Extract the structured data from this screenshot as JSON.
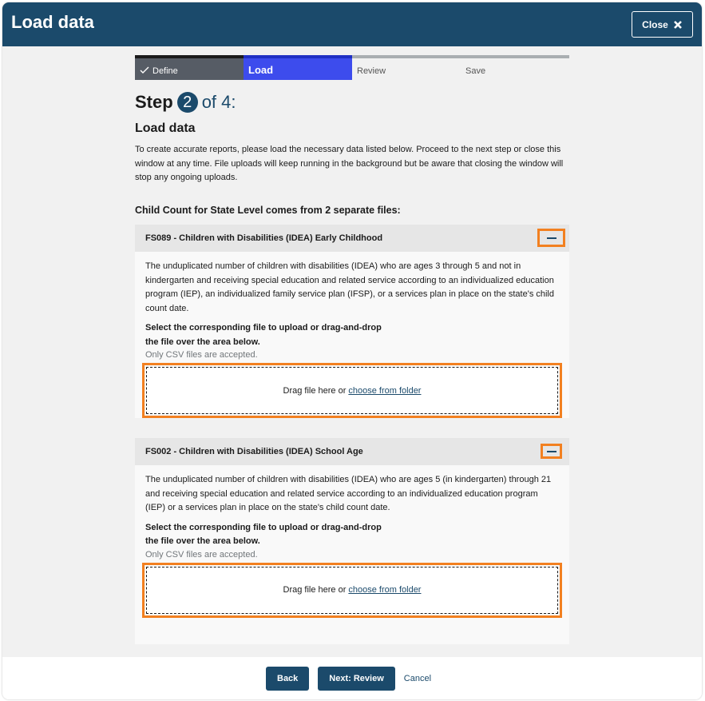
{
  "header": {
    "title": "Load data",
    "close_label": "Close"
  },
  "steps": [
    {
      "label": "Define",
      "state": "done"
    },
    {
      "label": "Load",
      "state": "current"
    },
    {
      "label": "Review",
      "state": "todo"
    },
    {
      "label": "Save",
      "state": "todo"
    }
  ],
  "step": {
    "prefix": "Step",
    "current": "2",
    "suffix": "of 4:"
  },
  "section_title": "Load data",
  "intro": "To create accurate reports, please load the necessary data listed below. Proceed to the next step or close this window at any time. File uploads will keep running in the background but be aware that closing the window will stop any ongoing uploads.",
  "files_heading": "Child Count for State Level comes from 2 separate files:",
  "files": [
    {
      "title": "FS089 - Children with Disabilities (IDEA) Early Childhood",
      "description": "The unduplicated number of children with disabilities (IDEA) who are ages 3 through 5 and not in kindergarten and receiving special education and related service according to an individualized education program (IEP), an individualized family service plan (IFSP), or a services plan in place on the state's child count date.",
      "select_text": "Select the corresponding file to upload or drag-and-drop the file over the area below.",
      "only_csv": "Only CSV files are accepted.",
      "drop_text": "Drag file here or",
      "drop_link": "choose from folder"
    },
    {
      "title": "FS002 - Children with Disabilities (IDEA) School Age",
      "description": "The unduplicated number of children with disabilities (IDEA) who are ages 5 (in kindergarten) through 21 and receiving special education and related service according to an individualized education program (IEP) or a services plan in place on the state's child count date.",
      "select_text": "Select the corresponding file to upload or drag-and-drop the file over the area below.",
      "only_csv": "Only CSV files are accepted.",
      "drop_text": "Drag file here or",
      "drop_link": "choose from folder"
    }
  ],
  "footer": {
    "back": "Back",
    "next": "Next: Review",
    "cancel": "Cancel"
  },
  "colors": {
    "brand": "#1b4a6b",
    "current_step": "#3d4ced",
    "focus": "#f28020"
  }
}
